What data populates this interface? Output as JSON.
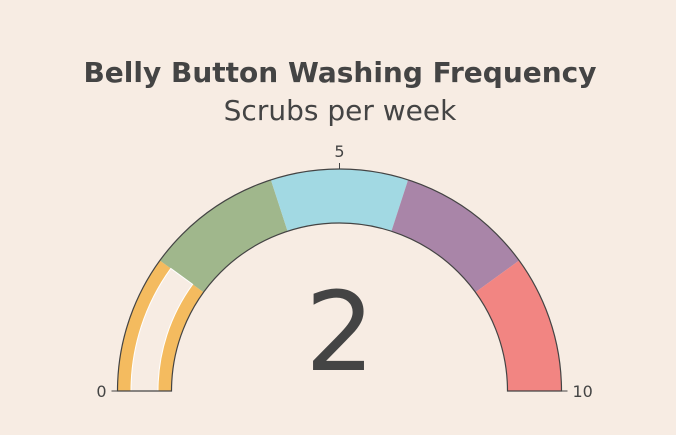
{
  "chart_data": {
    "type": "gauge",
    "title": "Belly Button Washing Frequency",
    "subtitle": "Scrubs per week",
    "value": 2,
    "value_label": "2",
    "range": [
      0,
      10
    ],
    "ticks": [
      {
        "value": 0,
        "label": "0"
      },
      {
        "value": 5,
        "label": "5"
      },
      {
        "value": 10,
        "label": "10"
      }
    ],
    "steps": [
      {
        "from": 0,
        "to": 2,
        "color": "#f4bb5f"
      },
      {
        "from": 2,
        "to": 4,
        "color": "#a0b78c"
      },
      {
        "from": 4,
        "to": 6,
        "color": "#a2d9e3"
      },
      {
        "from": 6,
        "to": 8,
        "color": "#a985a8"
      },
      {
        "from": 8,
        "to": 10,
        "color": "#f28582"
      }
    ],
    "background_color": "#f7ece3",
    "value_bar_color": "#f7ece3",
    "outline_color": "#444444"
  }
}
